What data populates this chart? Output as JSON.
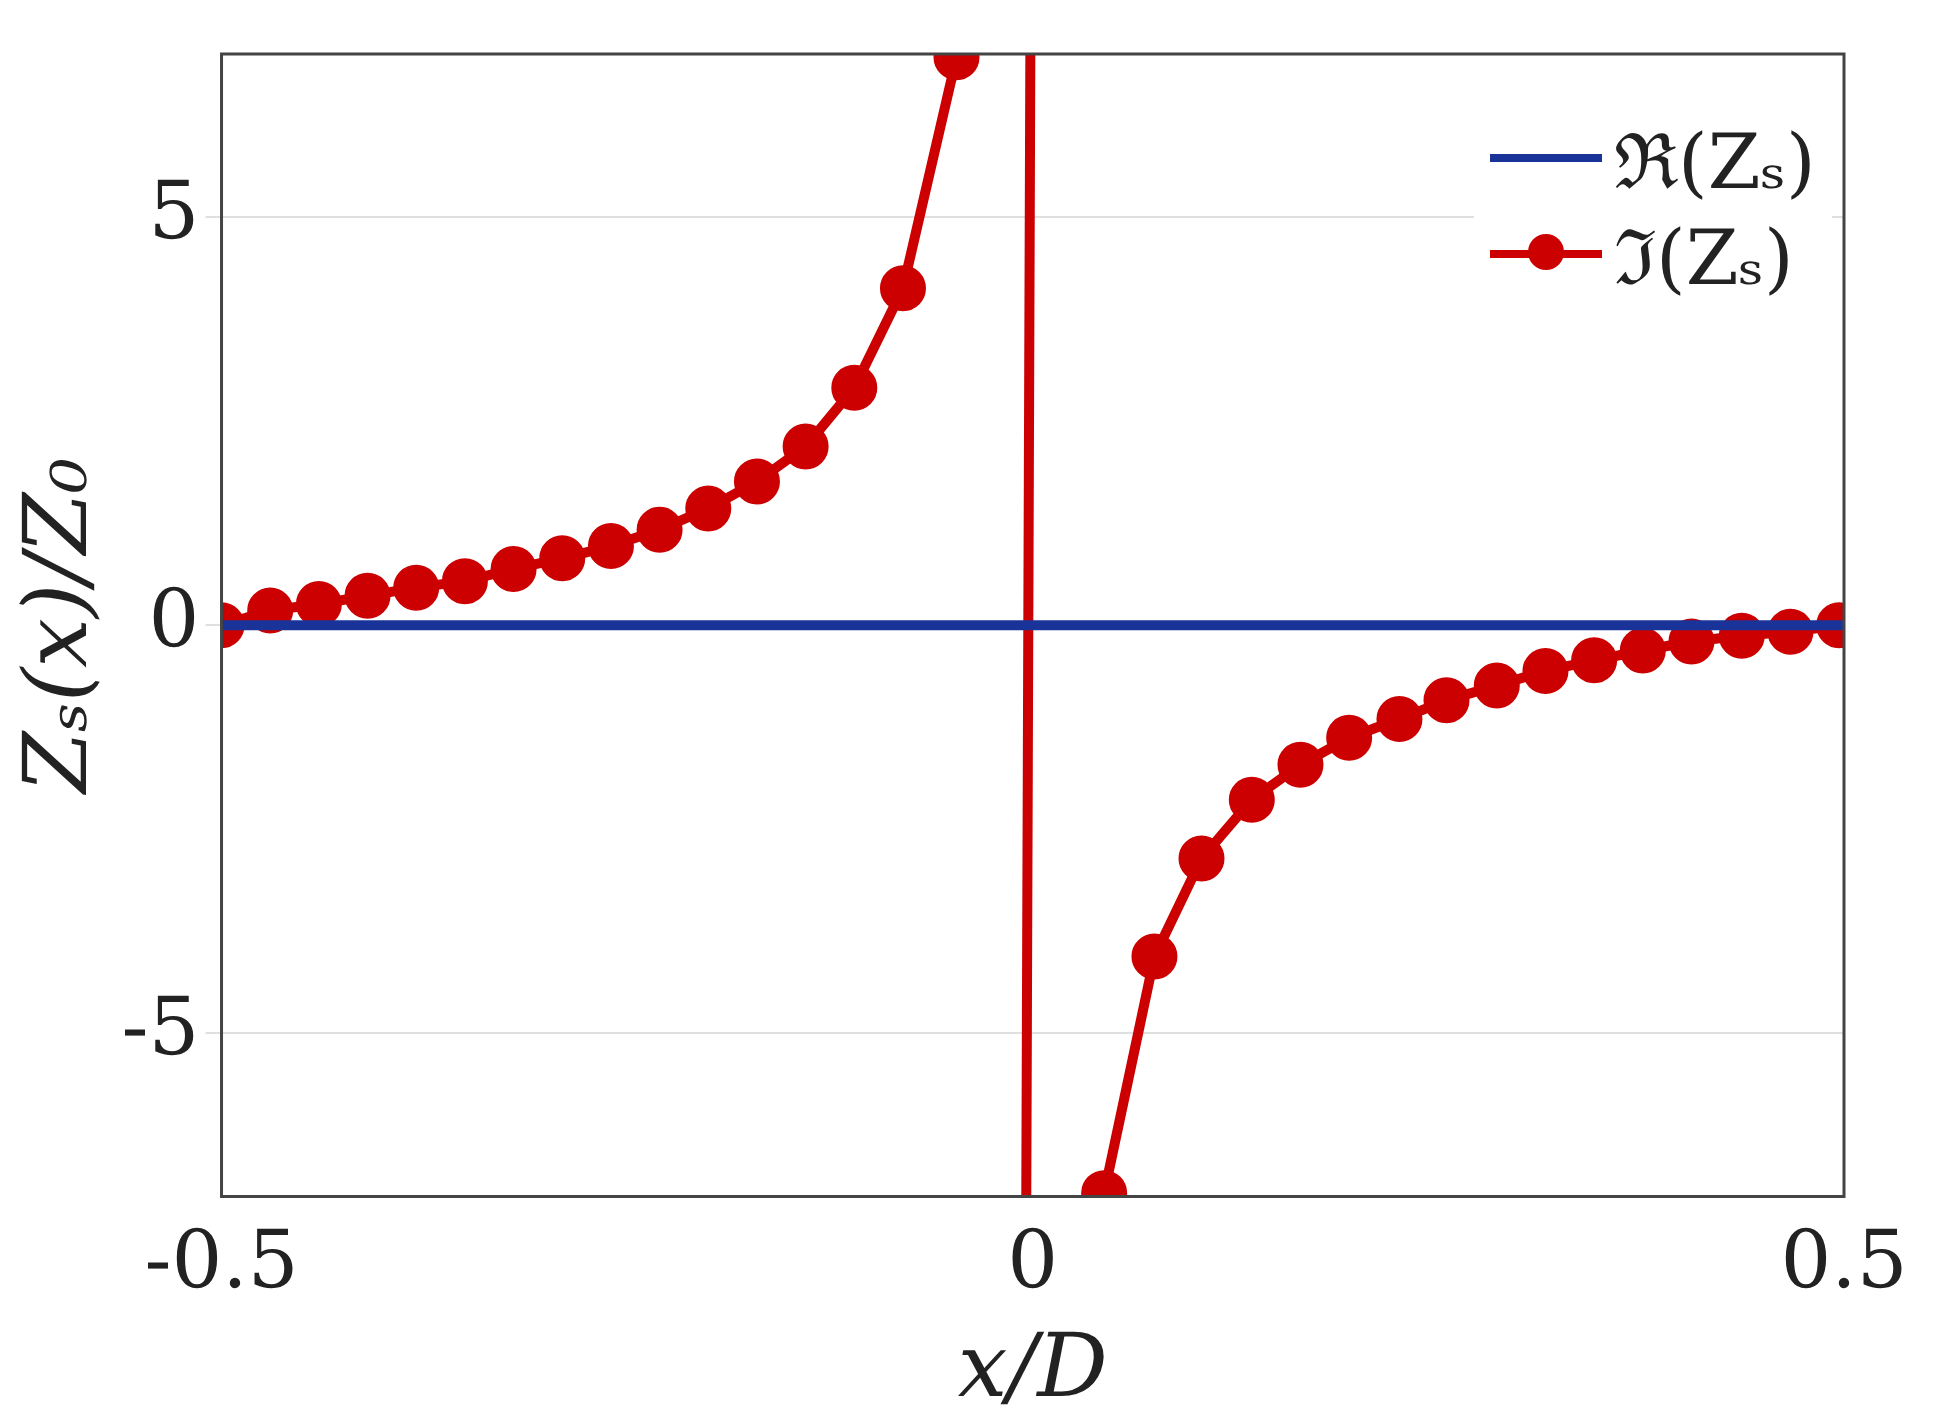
{
  "chart_data": {
    "type": "line",
    "xlabel": "x/D",
    "ylabel": "Zₛ(x)/Z₀",
    "xlim": [
      -0.5,
      0.5
    ],
    "xticks": [
      -0.5,
      0,
      0.5
    ],
    "ylim": [
      -7,
      7
    ],
    "yticks": [
      -5,
      0,
      5
    ],
    "grid": "y",
    "legend": "top right",
    "series": [
      {
        "name": "ℜ(Zₛ)",
        "color": "#1a3399",
        "marker": "none",
        "x": [
          -0.5,
          0.5
        ],
        "values": [
          0,
          0
        ]
      },
      {
        "name": "ℑ(Zₛ)",
        "color": "#cc0000",
        "marker": "circle",
        "x": [
          -0.5,
          -0.47,
          -0.44,
          -0.41,
          -0.38,
          -0.35,
          -0.32,
          -0.29,
          -0.26,
          -0.23,
          -0.2,
          -0.17,
          -0.14,
          -0.11,
          -0.08,
          -0.047,
          null,
          0.044,
          0.075,
          0.104,
          0.135,
          0.165,
          0.195,
          0.226,
          0.255,
          0.286,
          0.316,
          0.346,
          0.376,
          0.406,
          0.437,
          0.467,
          0.497
        ],
        "values": [
          0,
          0.18,
          0.26,
          0.36,
          0.46,
          0.54,
          0.69,
          0.82,
          0.97,
          1.17,
          1.43,
          1.76,
          2.19,
          2.91,
          4.13,
          6.96,
          null,
          -6.96,
          -4.06,
          -2.86,
          -2.14,
          -1.71,
          -1.38,
          -1.15,
          -0.92,
          -0.74,
          -0.56,
          -0.43,
          -0.31,
          -0.2,
          -0.13,
          -0.08,
          0
        ]
      },
      {
        "color": "#cc0000",
        "marker": "none",
        "x": [
          -0.0015,
          -0.004
        ],
        "values": [
          7,
          -7
        ]
      }
    ]
  }
}
